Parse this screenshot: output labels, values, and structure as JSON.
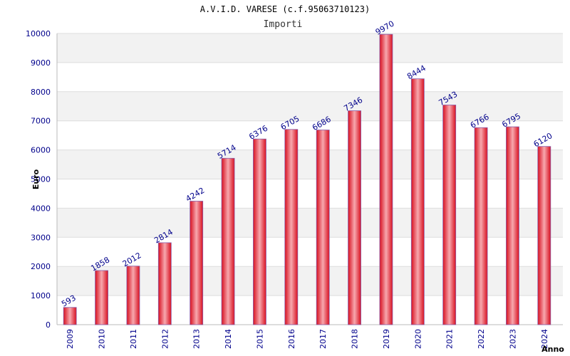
{
  "chart_data": {
    "type": "bar",
    "title": "A.V.I.D. VARESE (c.f.95063710123)",
    "subtitle": "Importi",
    "xlabel": "Anno",
    "ylabel": "Euro",
    "categories": [
      "2009",
      "2010",
      "2011",
      "2012",
      "2013",
      "2014",
      "2015",
      "2016",
      "2017",
      "2018",
      "2019",
      "2020",
      "2021",
      "2022",
      "2023",
      "2024"
    ],
    "values": [
      593,
      1858,
      2012,
      2814,
      4242,
      5714,
      6376,
      6705,
      6686,
      7346,
      9970,
      8444,
      7543,
      6766,
      6795,
      6120
    ],
    "ylim": [
      0,
      10000
    ],
    "yticks": [
      0,
      1000,
      2000,
      3000,
      4000,
      5000,
      6000,
      7000,
      8000,
      9000,
      10000
    ],
    "grid": true,
    "legend": "none"
  },
  "colors": {
    "bar_dark": "#d81020",
    "bar_light": "#f7a8ae",
    "bar_border": "#8a5ca8",
    "band": "#f2f2f2",
    "gridline": "#dddddd",
    "tick_text": "#00008b",
    "label_text": "#00008b"
  }
}
